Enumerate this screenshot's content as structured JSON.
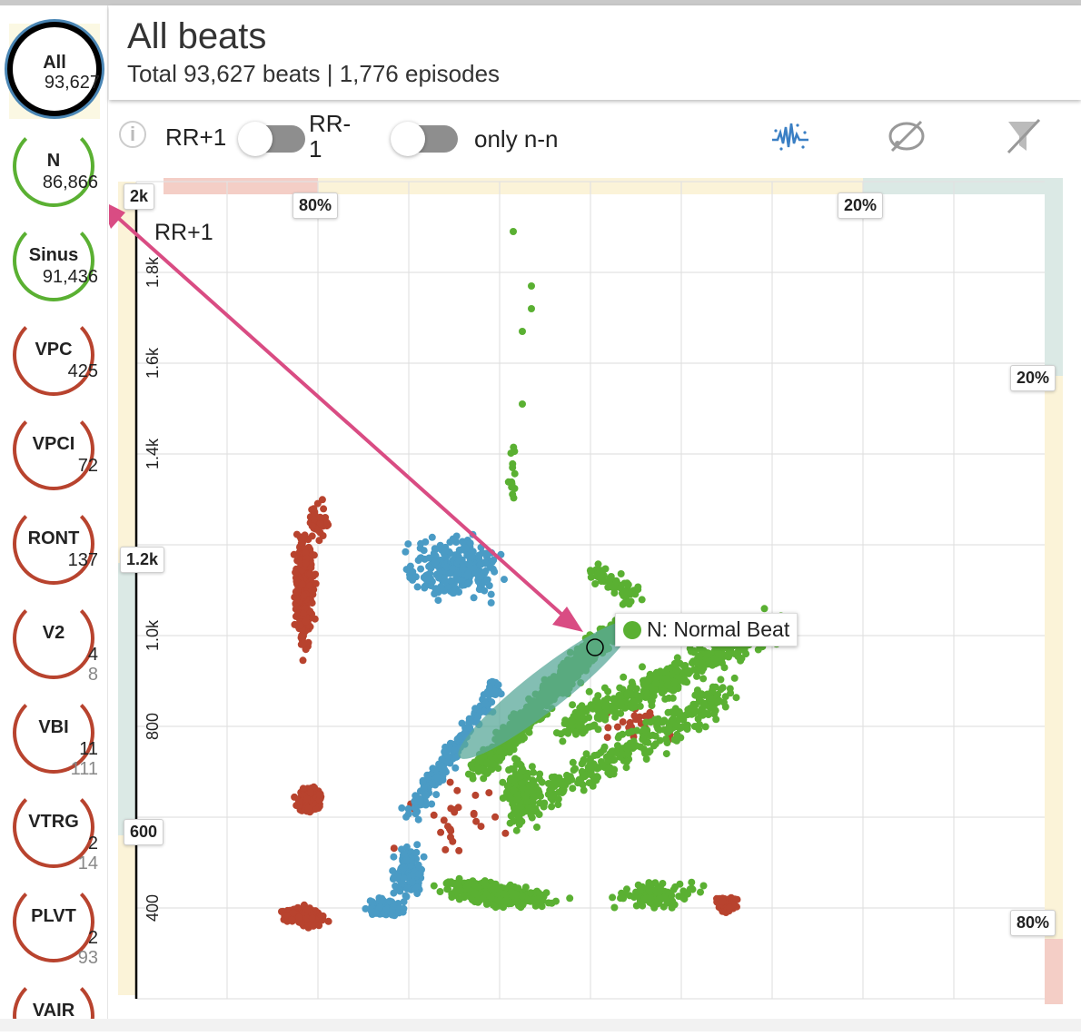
{
  "header": {
    "title": "All beats",
    "subtitle": "Total 93,627 beats | 1,776 episodes"
  },
  "sidebar": {
    "items": [
      {
        "label": "All",
        "count": "93,627"
      },
      {
        "label": "N",
        "count": "86,866"
      },
      {
        "label": "Sinus",
        "count": "91,436"
      },
      {
        "label": "VPC",
        "count": "425"
      },
      {
        "label": "VPCI",
        "count": "72"
      },
      {
        "label": "RONT",
        "count": "137"
      },
      {
        "label": "V2",
        "count": "4",
        "count2": "8"
      },
      {
        "label": "VBI",
        "count": "11",
        "count2": "111"
      },
      {
        "label": "VTRG",
        "count": "2",
        "count2": "14"
      },
      {
        "label": "PLVT",
        "count": "2",
        "count2": "93"
      },
      {
        "label": "VAIR",
        "count": ""
      }
    ],
    "colors": {
      "normal": "#5ab032",
      "ventricular": "#b8432e",
      "selected": "#000000",
      "selected_ring": "#4a86b5"
    }
  },
  "toolbar": {
    "toggle1_label": "RR+1",
    "toggle2_label_line1": "RR-",
    "toggle2_label_line2": "1",
    "toggle3_label": "only n-n",
    "icons": [
      "info-icon",
      "waveform-icon",
      "hide-icon",
      "filter-off-icon"
    ]
  },
  "chart_data": {
    "type": "scatter",
    "ylabel": "RR+1",
    "y_ticks": [
      "400",
      "600",
      "800",
      "1.0k",
      "1.2k",
      "1.4k",
      "1.6k",
      "1.8k",
      "2k"
    ],
    "y_tags": [
      "2k",
      "1.2k",
      "600"
    ],
    "ylim": [
      200,
      2000
    ],
    "xlim": [
      200,
      2000
    ],
    "grid": true,
    "percent_tags": {
      "top_left": "80%",
      "top_right": "20%",
      "right_top": "20%",
      "right_bottom": "80%"
    },
    "tooltip": "N: Normal Beat",
    "series": [
      {
        "key": "N",
        "color": "#5ab032"
      },
      {
        "key": "V",
        "color": "#b8432e"
      },
      {
        "key": "S",
        "color": "#4a9bc5"
      }
    ]
  }
}
